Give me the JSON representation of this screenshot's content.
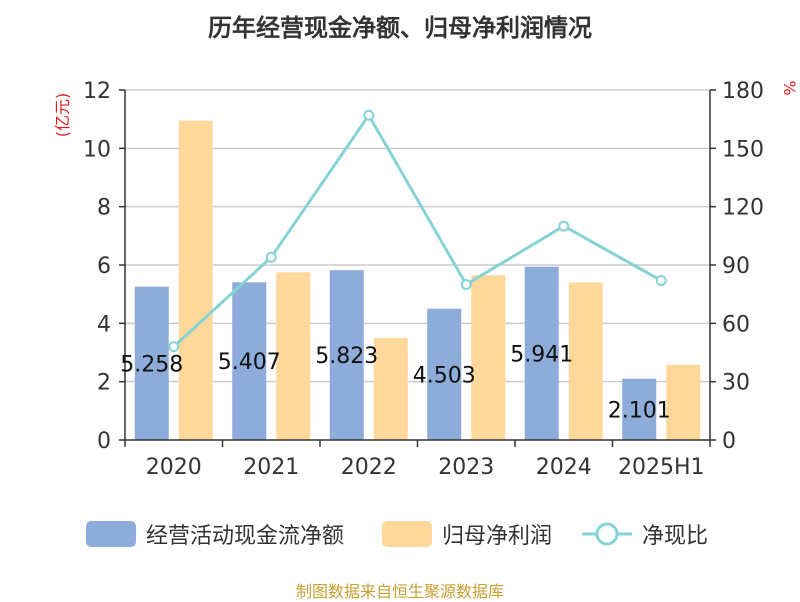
{
  "title": "历年经营现金净额、归母净利润情况",
  "source": "制图数据来自恒生聚源数据库",
  "colors": {
    "cash_flow": "#8eacd9",
    "net_profit": "#fdd89a",
    "ratio": "#86d3d6",
    "axis_unit": "#e02020",
    "grid": "#cccccc",
    "axis": "#333333"
  },
  "chart_data": {
    "type": "bar",
    "categories": [
      "2020",
      "2021",
      "2022",
      "2023",
      "2024",
      "2025H1"
    ],
    "left_axis": {
      "label": "(亿元)",
      "min": 0,
      "max": 12,
      "ticks": [
        0,
        2,
        4,
        6,
        8,
        10,
        12
      ]
    },
    "right_axis": {
      "label": "%",
      "min": 0,
      "max": 180,
      "ticks": [
        0,
        30,
        60,
        90,
        120,
        150,
        180
      ]
    },
    "grid": true,
    "legend_position": "bottom",
    "series": [
      {
        "name": "经营活动现金流净额",
        "type": "bar",
        "axis": "left",
        "values": [
          5.258,
          5.407,
          5.823,
          4.503,
          5.941,
          2.101
        ],
        "data_labels": [
          "5.258",
          "5.407",
          "5.823",
          "4.503",
          "5.941",
          "2.101"
        ]
      },
      {
        "name": "归母净利润",
        "type": "bar",
        "axis": "left",
        "values": [
          10.95,
          5.75,
          3.5,
          5.65,
          5.4,
          2.58
        ]
      },
      {
        "name": "净现比",
        "type": "line",
        "axis": "right",
        "values": [
          48,
          94,
          167,
          80,
          110,
          82
        ]
      }
    ]
  }
}
